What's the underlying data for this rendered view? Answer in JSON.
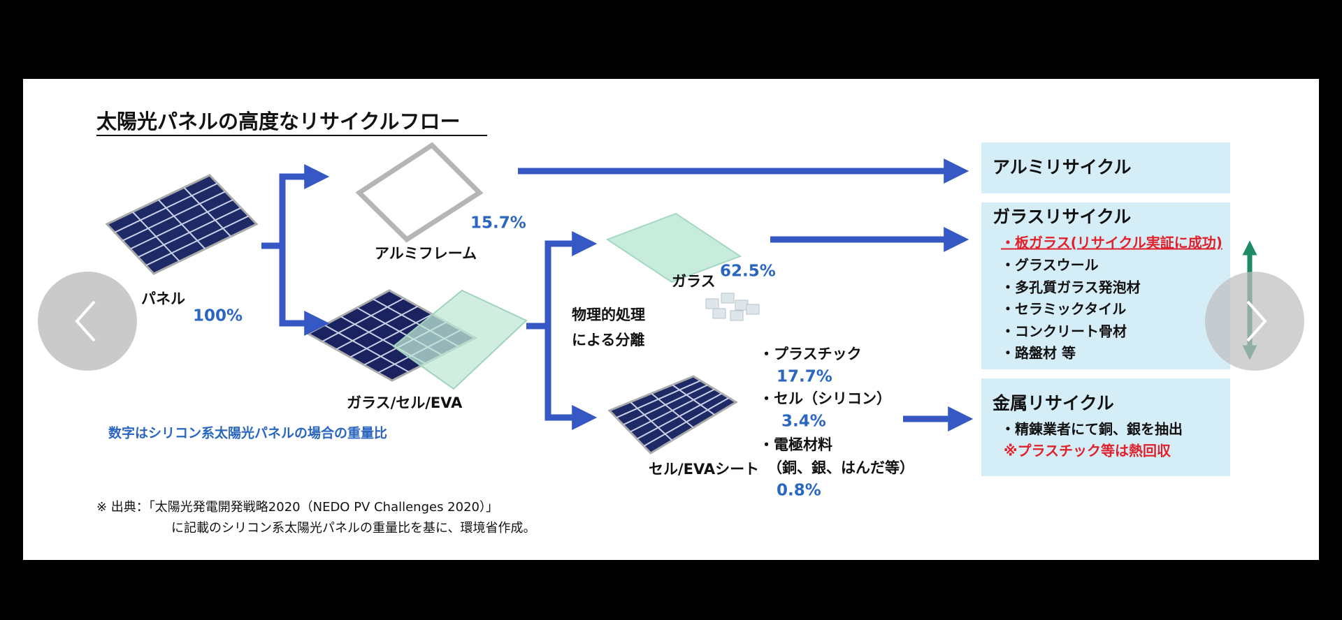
{
  "slide": {
    "title": "太陽光パネルの高度なリサイクルフロー",
    "panel": {
      "label": "パネル",
      "percent": "100%"
    },
    "aluminum_frame": {
      "label": "アルミフレーム",
      "percent": "15.7%"
    },
    "glass_cell_eva": {
      "label": "ガラス/セル/EVA"
    },
    "note": "数字はシリコン系太陽光パネルの場合の重量比",
    "separation": [
      "物理的処理",
      "による分離"
    ],
    "glass": {
      "label": "ガラス",
      "percent": "62.5%"
    },
    "cell_sheet": {
      "label": "セル/EVAシート",
      "components": [
        {
          "name": "・プラスチック",
          "percent": "17.7%"
        },
        {
          "name": "・セル（シリコン）",
          "percent": "3.4%"
        },
        {
          "name": "・電極材料",
          "detail": "（銅、銀、はんだ等）",
          "percent": "0.8%"
        }
      ]
    },
    "recycling": [
      {
        "title": "アルミリサイクル"
      },
      {
        "title": "ガラスリサイクル",
        "items": [
          "・板ガラス(リサイクル実証に成功)",
          "・グラスウール",
          "・多孔質ガラス発泡材",
          "・セラミックタイル",
          "・コンクリート骨材",
          "・路盤材 等"
        ]
      },
      {
        "title": "金属リサイクル",
        "items": [
          "・精錬業者にて銅、銀を抽出",
          "※プラスチック等は熱回収"
        ]
      }
    ],
    "source": [
      "※  出典：「太陽光発電開発戦略2020（NEDO PV Challenges 2020）」",
      "に記載のシリコン系太陽光パネルの重量比を基に、環境省作成。"
    ]
  }
}
